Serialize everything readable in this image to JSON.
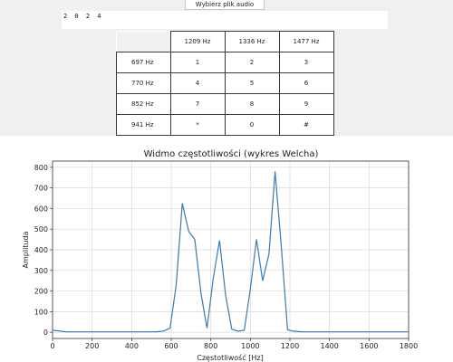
{
  "toolbar": {
    "choose_file_label": "Wybierz plik audio"
  },
  "display": {
    "digits": "2 0 2 4"
  },
  "dtmf_table": {
    "col_headers": [
      "1209 Hz",
      "1336 Hz",
      "1477 Hz"
    ],
    "rows": [
      {
        "label": "697 Hz",
        "keys": [
          "1",
          "2",
          "3"
        ]
      },
      {
        "label": "770 Hz",
        "keys": [
          "4",
          "5",
          "6"
        ]
      },
      {
        "label": "852 Hz",
        "keys": [
          "7",
          "8",
          "9"
        ]
      },
      {
        "label": "941 Hz",
        "keys": [
          "*",
          "0",
          "#"
        ]
      }
    ]
  },
  "chart_data": {
    "type": "line",
    "title": "Widmo częstotliwości (wykres Welcha)",
    "xlabel": "Częstotliwość [Hz]",
    "ylabel": "Amplituda",
    "xlim": [
      0,
      1800
    ],
    "ylim": [
      -30,
      830
    ],
    "xticks": [
      0,
      200,
      400,
      600,
      800,
      1000,
      1200,
      1400,
      1600,
      1800
    ],
    "yticks": [
      0,
      100,
      200,
      300,
      400,
      500,
      600,
      700,
      800
    ],
    "grid": true,
    "color": "#3a7bb0",
    "series": [
      {
        "x": [
          0,
          31,
          62,
          94,
          125,
          156,
          188,
          219,
          250,
          281,
          312,
          344,
          375,
          406,
          438,
          469,
          500,
          531,
          562,
          594,
          625,
          656,
          688,
          719,
          750,
          781,
          812,
          844,
          875,
          906,
          938,
          969,
          1000,
          1031,
          1062,
          1094,
          1125,
          1156,
          1188,
          1219,
          1250,
          1281,
          1312,
          1344,
          1375,
          1406,
          1438,
          1469,
          1500,
          1531,
          1562,
          1594,
          1625,
          1656,
          1688,
          1719,
          1750,
          1781,
          1800
        ],
        "y": [
          10,
          7,
          3,
          2,
          2,
          2,
          2,
          2,
          2,
          2,
          2,
          2,
          2,
          2,
          2,
          2,
          2,
          3,
          6,
          20,
          230,
          625,
          490,
          450,
          190,
          20,
          260,
          445,
          180,
          15,
          5,
          10,
          210,
          450,
          250,
          380,
          780,
          420,
          12,
          5,
          3,
          2,
          2,
          2,
          2,
          2,
          2,
          2,
          2,
          2,
          2,
          2,
          2,
          2,
          2,
          2,
          2,
          2,
          2
        ]
      }
    ]
  }
}
